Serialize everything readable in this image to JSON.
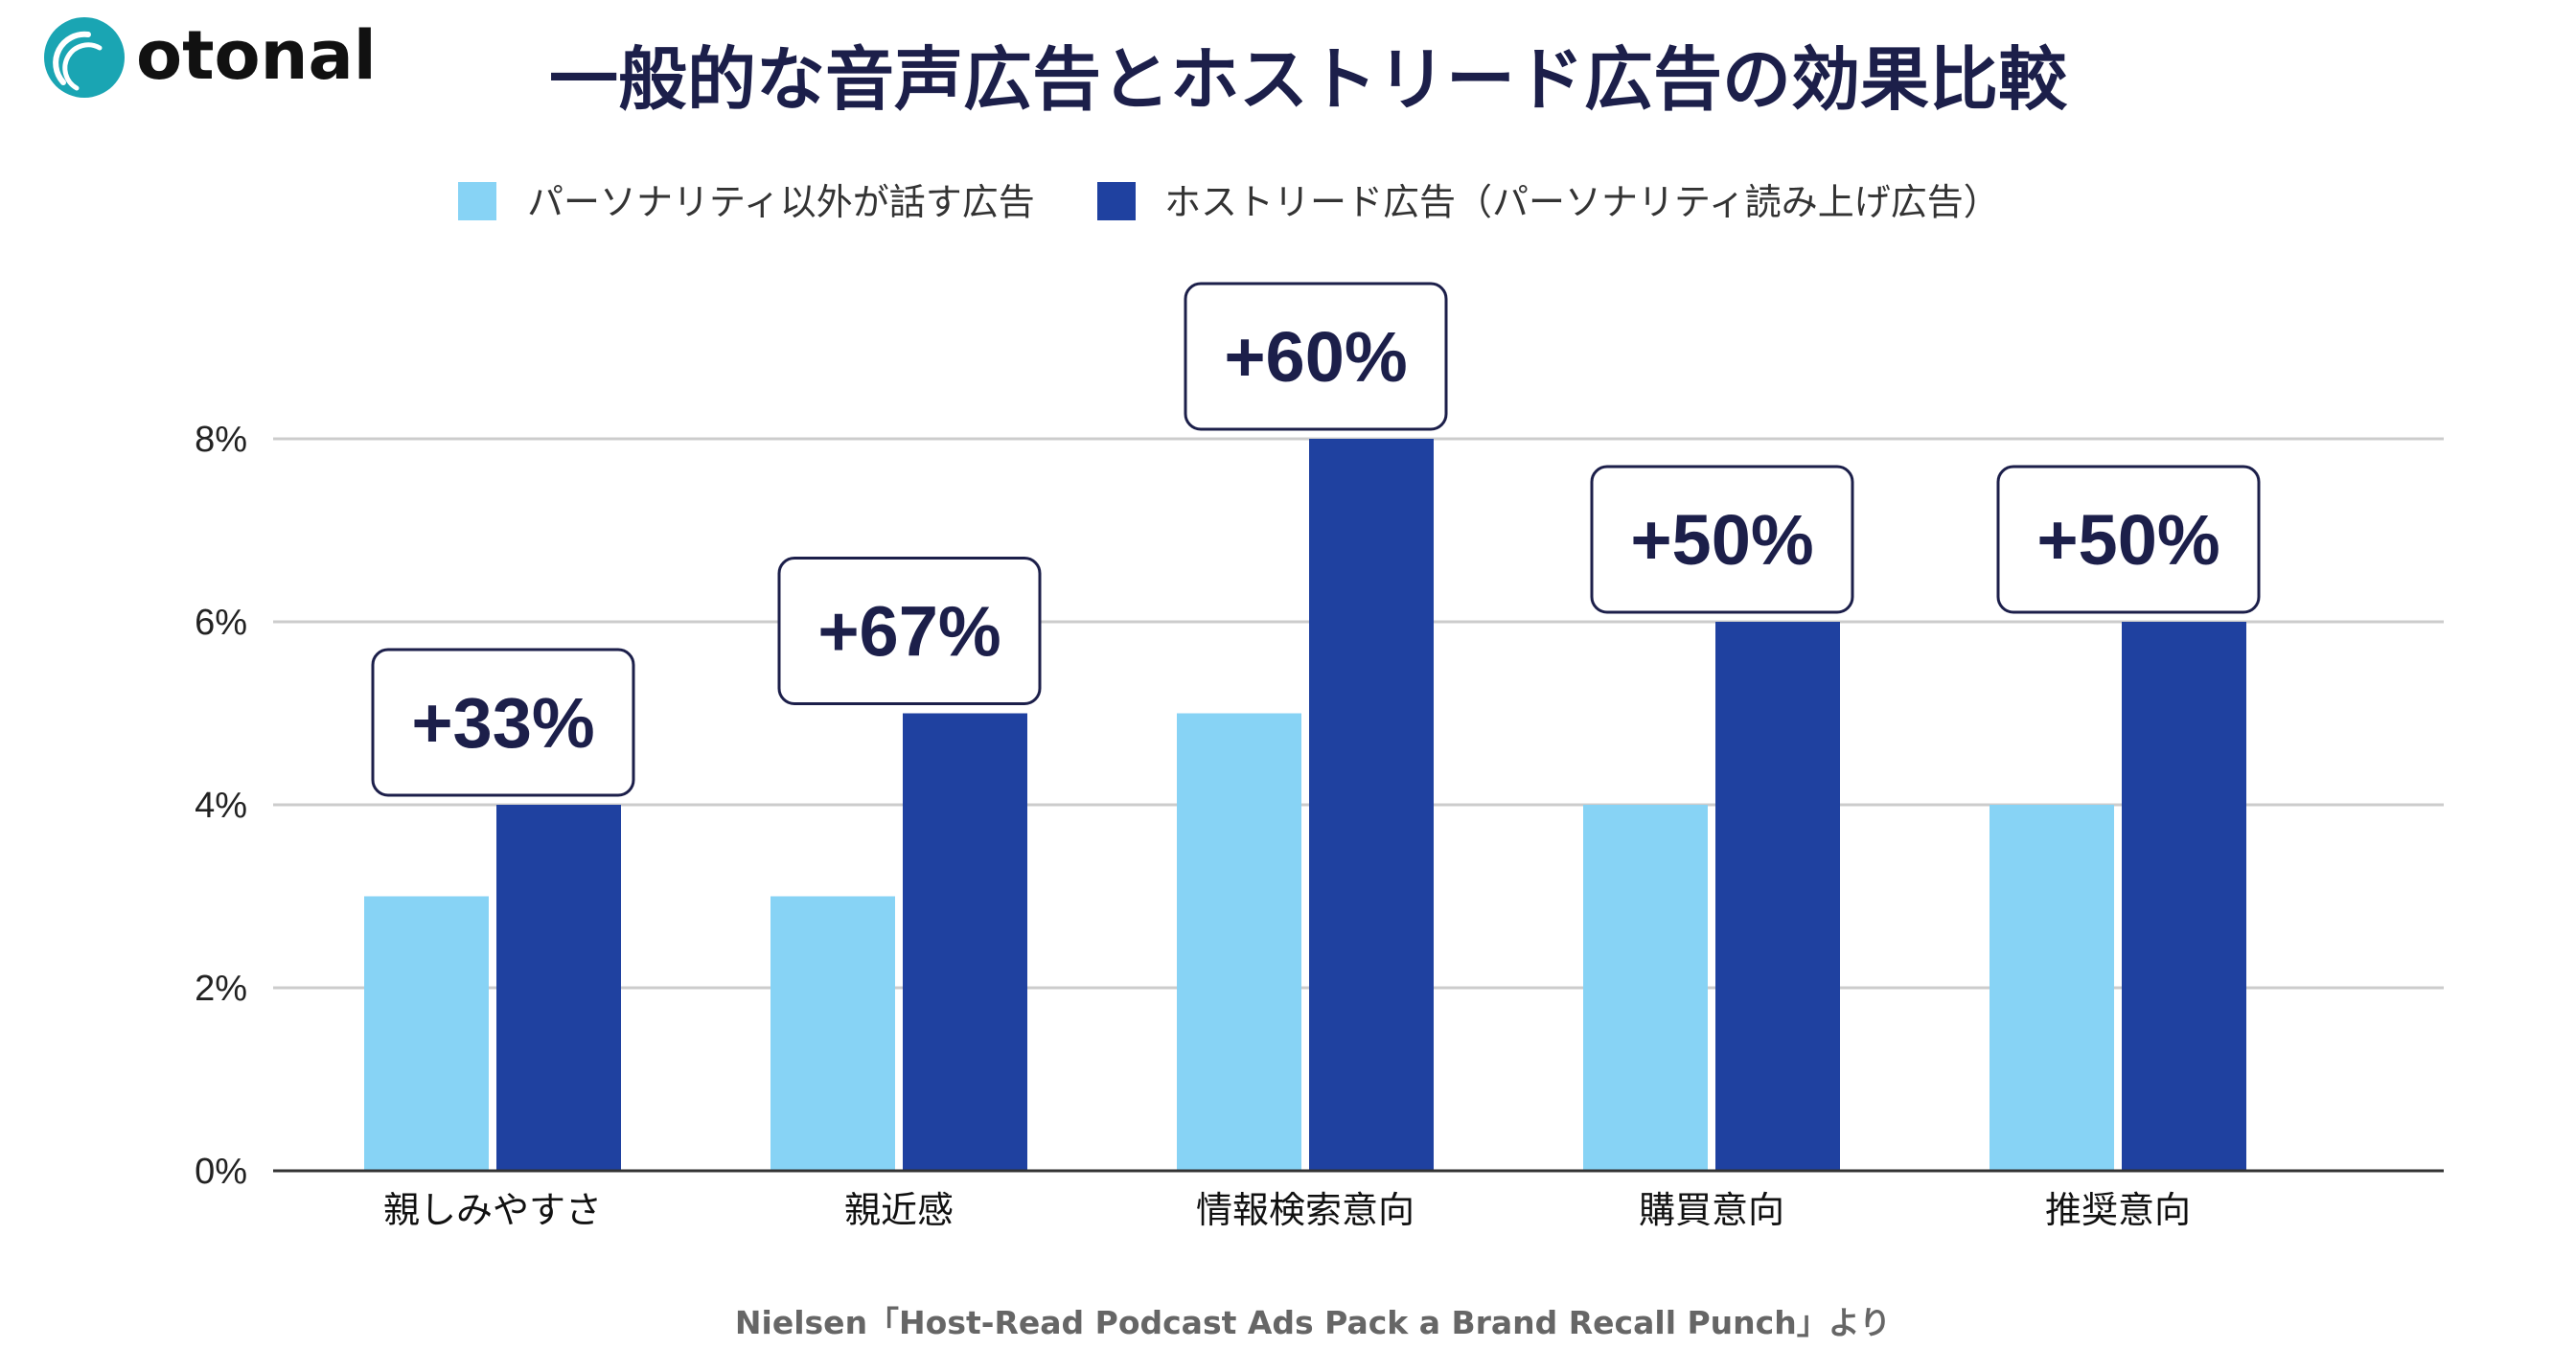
{
  "brand": {
    "name": "otonal",
    "logo_color": "#1aa5b3"
  },
  "chart_data": {
    "type": "bar",
    "title": "一般的な音声広告とホストリード広告の効果比較",
    "categories": [
      "親しみやすさ",
      "親近感",
      "情報検索意向",
      "購買意向",
      "推奨意向"
    ],
    "series": [
      {
        "name": "パーソナリティ以外が話す広告",
        "color": "#87d3f5",
        "values": [
          3,
          3,
          5,
          4,
          4
        ]
      },
      {
        "name": "ホストリード広告（パーソナリティ読み上げ広告）",
        "color": "#1f41a0",
        "values": [
          4,
          5,
          8,
          6,
          6
        ]
      }
    ],
    "callouts": [
      "+33%",
      "+67%",
      "+60%",
      "+50%",
      "+50%"
    ],
    "yticks": [
      {
        "value": 0,
        "label": "0%"
      },
      {
        "value": 2,
        "label": "2%"
      },
      {
        "value": 4,
        "label": "4%"
      },
      {
        "value": 6,
        "label": "6%"
      },
      {
        "value": 8,
        "label": "8%"
      }
    ],
    "ylim": [
      0,
      8
    ],
    "grid": true,
    "legend": "top",
    "xlabel": "",
    "ylabel": ""
  },
  "source": "Nielsen「Host-Read Podcast Ads Pack a Brand Recall Punch」より"
}
